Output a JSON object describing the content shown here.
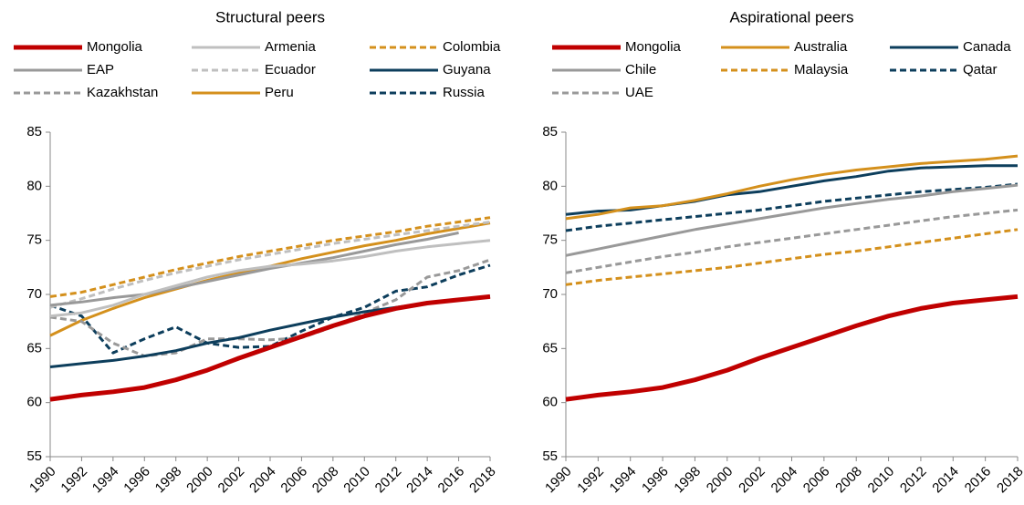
{
  "chart_data": [
    {
      "type": "line",
      "title": "Structural peers",
      "x": [
        1990,
        1992,
        1994,
        1996,
        1998,
        2000,
        2002,
        2004,
        2006,
        2008,
        2010,
        2012,
        2014,
        2016,
        2018
      ],
      "xlim": [
        1990,
        2018
      ],
      "xticks": [
        1990,
        1992,
        1994,
        1996,
        1998,
        2000,
        2002,
        2004,
        2006,
        2008,
        2010,
        2012,
        2014,
        2016,
        2018
      ],
      "ylim": [
        55,
        85
      ],
      "yticks": [
        55,
        60,
        65,
        70,
        75,
        80,
        85
      ],
      "series": [
        {
          "name": "Mongolia",
          "color": "#c00000",
          "style": "bold",
          "values": [
            60.3,
            60.7,
            61.0,
            61.4,
            62.1,
            63.0,
            64.1,
            65.1,
            66.1,
            67.1,
            68.0,
            68.7,
            69.2,
            69.5,
            69.8
          ]
        },
        {
          "name": "Armenia",
          "color": "#bfbfbf",
          "style": "solid",
          "values": [
            68.0,
            68.3,
            69.0,
            70.0,
            70.8,
            71.6,
            72.2,
            72.6,
            72.8,
            73.1,
            73.5,
            74.0,
            74.4,
            74.7,
            75.0
          ]
        },
        {
          "name": "Colombia",
          "color": "#d4901c",
          "style": "dashed",
          "values": [
            69.8,
            70.2,
            70.9,
            71.6,
            72.3,
            72.9,
            73.5,
            74.0,
            74.5,
            75.0,
            75.4,
            75.8,
            76.3,
            76.7,
            77.1
          ]
        },
        {
          "name": "EAP",
          "color": "#999999",
          "style": "solid",
          "values": [
            69.0,
            69.3,
            69.7,
            70.0,
            70.6,
            71.2,
            71.8,
            72.4,
            72.9,
            73.4,
            74.0,
            74.6,
            75.1,
            75.7,
            null
          ]
        },
        {
          "name": "Ecuador",
          "color": "#bfbfbf",
          "style": "dashed",
          "values": [
            68.8,
            69.6,
            70.5,
            71.3,
            72.0,
            72.6,
            73.2,
            73.7,
            74.2,
            74.7,
            75.1,
            75.5,
            75.9,
            76.3,
            76.7
          ]
        },
        {
          "name": "Guyana",
          "color": "#0d3e5c",
          "style": "solid",
          "values": [
            63.3,
            63.6,
            63.9,
            64.3,
            64.8,
            65.5,
            66.0,
            66.7,
            67.3,
            67.9,
            68.4,
            68.8,
            69.2,
            69.5,
            69.8
          ]
        },
        {
          "name": "Kazakhstan",
          "color": "#999999",
          "style": "dashed",
          "values": [
            67.9,
            67.5,
            65.5,
            64.3,
            64.6,
            65.9,
            65.9,
            65.8,
            66.0,
            67.0,
            68.3,
            69.5,
            71.6,
            72.2,
            73.2
          ]
        },
        {
          "name": "Peru",
          "color": "#d4901c",
          "style": "solid",
          "values": [
            66.2,
            67.6,
            68.7,
            69.7,
            70.5,
            71.3,
            72.0,
            72.6,
            73.3,
            73.9,
            74.5,
            75.0,
            75.6,
            76.1,
            76.6
          ]
        },
        {
          "name": "Russia",
          "color": "#0d3e5c",
          "style": "dashed",
          "values": [
            69.0,
            68.0,
            64.6,
            65.9,
            67.0,
            65.5,
            65.1,
            65.2,
            66.6,
            67.9,
            68.8,
            70.3,
            70.7,
            71.8,
            72.7
          ]
        }
      ]
    },
    {
      "type": "line",
      "title": "Aspirational peers",
      "x": [
        1990,
        1992,
        1994,
        1996,
        1998,
        2000,
        2002,
        2004,
        2006,
        2008,
        2010,
        2012,
        2014,
        2016,
        2018
      ],
      "xlim": [
        1990,
        2018
      ],
      "xticks": [
        1990,
        1992,
        1994,
        1996,
        1998,
        2000,
        2002,
        2004,
        2006,
        2008,
        2010,
        2012,
        2014,
        2016,
        2018
      ],
      "ylim": [
        55,
        85
      ],
      "yticks": [
        55,
        60,
        65,
        70,
        75,
        80,
        85
      ],
      "series": [
        {
          "name": "Mongolia",
          "color": "#c00000",
          "style": "bold",
          "values": [
            60.3,
            60.7,
            61.0,
            61.4,
            62.1,
            63.0,
            64.1,
            65.1,
            66.1,
            67.1,
            68.0,
            68.7,
            69.2,
            69.5,
            69.8
          ]
        },
        {
          "name": "Australia",
          "color": "#d4901c",
          "style": "solid",
          "values": [
            77.0,
            77.4,
            78.0,
            78.2,
            78.7,
            79.3,
            80.0,
            80.6,
            81.1,
            81.5,
            81.8,
            82.1,
            82.3,
            82.5,
            82.8
          ]
        },
        {
          "name": "Canada",
          "color": "#0d3e5c",
          "style": "solid",
          "values": [
            77.4,
            77.7,
            77.8,
            78.2,
            78.6,
            79.2,
            79.5,
            80.0,
            80.5,
            80.9,
            81.4,
            81.7,
            81.8,
            81.9,
            81.9
          ]
        },
        {
          "name": "Chile",
          "color": "#999999",
          "style": "solid",
          "values": [
            73.6,
            74.2,
            74.8,
            75.4,
            76.0,
            76.5,
            77.0,
            77.5,
            78.0,
            78.4,
            78.8,
            79.1,
            79.5,
            79.8,
            80.1
          ]
        },
        {
          "name": "Malaysia",
          "color": "#d4901c",
          "style": "dashed",
          "values": [
            70.9,
            71.3,
            71.6,
            71.9,
            72.2,
            72.5,
            72.9,
            73.3,
            73.7,
            74.0,
            74.4,
            74.8,
            75.2,
            75.6,
            76.0
          ]
        },
        {
          "name": "Qatar",
          "color": "#0d3e5c",
          "style": "dashed",
          "values": [
            75.9,
            76.3,
            76.6,
            76.9,
            77.2,
            77.5,
            77.8,
            78.2,
            78.6,
            78.9,
            79.2,
            79.5,
            79.7,
            79.9,
            80.2
          ]
        },
        {
          "name": "UAE",
          "color": "#999999",
          "style": "dashed",
          "values": [
            72.0,
            72.5,
            73.0,
            73.5,
            73.9,
            74.4,
            74.8,
            75.2,
            75.6,
            76.0,
            76.4,
            76.8,
            77.2,
            77.5,
            77.8
          ]
        }
      ]
    }
  ]
}
